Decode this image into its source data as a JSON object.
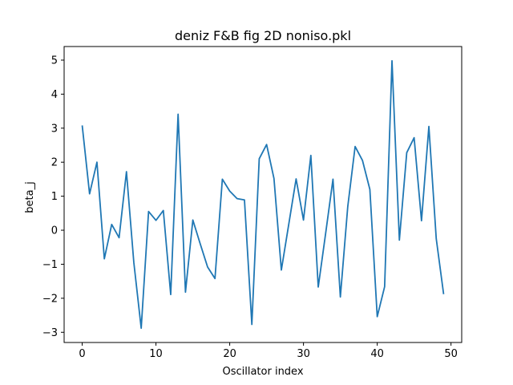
{
  "chart_data": {
    "type": "line",
    "title": "deniz F&B fig 2D noniso.pkl",
    "xlabel": "Oscillator index",
    "ylabel": "beta_j",
    "xlim": [
      -2.45,
      51.45
    ],
    "ylim": [
      -3.3,
      5.4
    ],
    "xticks": [
      0,
      10,
      20,
      30,
      40,
      50
    ],
    "yticks": [
      -3,
      -2,
      -1,
      0,
      1,
      2,
      3,
      4,
      5
    ],
    "grid": false,
    "series": [
      {
        "color": "#1f77b4",
        "x": [
          0,
          1,
          2,
          3,
          4,
          5,
          6,
          7,
          8,
          9,
          10,
          11,
          12,
          13,
          14,
          15,
          16,
          17,
          18,
          19,
          20,
          21,
          22,
          23,
          24,
          25,
          26,
          27,
          28,
          29,
          30,
          31,
          32,
          33,
          34,
          35,
          36,
          37,
          38,
          39,
          40,
          41,
          42,
          43,
          44,
          45,
          46,
          47,
          48,
          49
        ],
        "values": [
          3.08,
          1.07,
          2.0,
          -0.84,
          0.17,
          -0.22,
          1.72,
          -0.95,
          -2.88,
          0.55,
          0.29,
          0.58,
          -1.89,
          3.41,
          -1.82,
          0.3,
          -0.4,
          -1.08,
          -1.42,
          1.5,
          1.15,
          0.93,
          0.89,
          -2.77,
          2.1,
          2.52,
          1.52,
          -1.17,
          0.17,
          1.51,
          0.3,
          2.2,
          -1.67,
          -0.1,
          1.5,
          -1.96,
          0.69,
          2.46,
          2.05,
          1.2,
          -2.54,
          -1.66,
          4.98,
          -0.29,
          2.28,
          2.72,
          0.28,
          3.05,
          -0.25,
          -1.88
        ]
      }
    ]
  }
}
